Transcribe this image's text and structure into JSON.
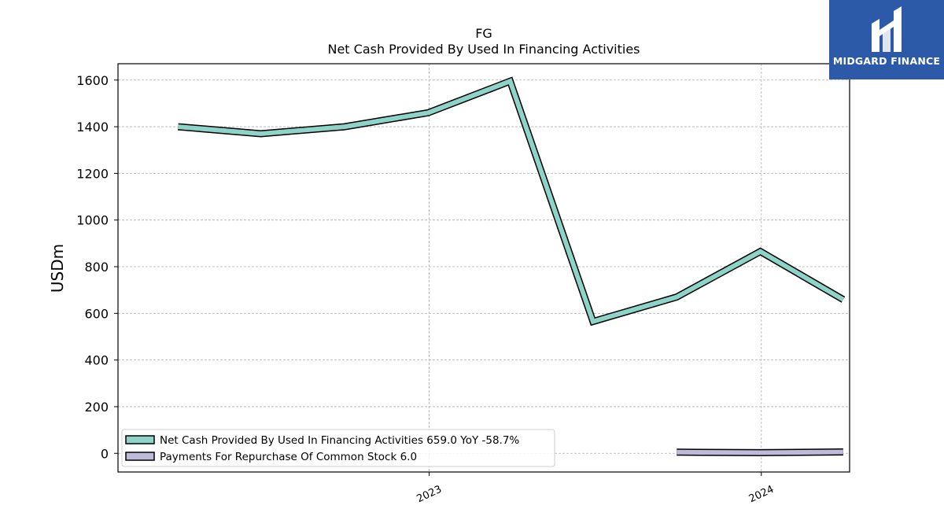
{
  "brand": {
    "name": "MIDGARD FINANCE",
    "background": "#2c5aa8"
  },
  "chart_data": {
    "type": "line",
    "title": "FG",
    "subtitle": "Net Cash Provided By Used In Financing Activities",
    "ylabel": "USDm",
    "xlabel": "",
    "ylim": [
      -80,
      1670
    ],
    "yticks": [
      0,
      200,
      400,
      600,
      800,
      1000,
      1200,
      1400,
      1600
    ],
    "xlim": [
      "2022-01-24",
      "2024-04-07"
    ],
    "xticks": [
      {
        "label": "2023",
        "date": "2023-01-01"
      },
      {
        "label": "2024",
        "date": "2024-01-01"
      }
    ],
    "grid": true,
    "legend_position": "lower-left",
    "series": [
      {
        "name": "Net Cash Provided By Used In Financing Activities",
        "legend_label": "Net Cash Provided By Used In Financing Activities  659.0 YoY -58.7%",
        "color": "#8dd3c7",
        "points": [
          {
            "x": "2022-03-31",
            "y": 1400
          },
          {
            "x": "2022-06-30",
            "y": 1370
          },
          {
            "x": "2022-09-30",
            "y": 1400
          },
          {
            "x": "2022-12-31",
            "y": 1460
          },
          {
            "x": "2023-03-31",
            "y": 1595
          },
          {
            "x": "2023-06-30",
            "y": 565
          },
          {
            "x": "2023-09-30",
            "y": 670
          },
          {
            "x": "2023-12-31",
            "y": 865
          },
          {
            "x": "2024-03-31",
            "y": 659
          }
        ]
      },
      {
        "name": "Payments For Repurchase Of Common Stock",
        "legend_label": "Payments For Repurchase Of Common Stock  6.0",
        "color": "#bebada",
        "points": [
          {
            "x": "2023-09-30",
            "y": 5
          },
          {
            "x": "2023-12-31",
            "y": 3
          },
          {
            "x": "2024-03-31",
            "y": 6
          }
        ]
      }
    ]
  }
}
